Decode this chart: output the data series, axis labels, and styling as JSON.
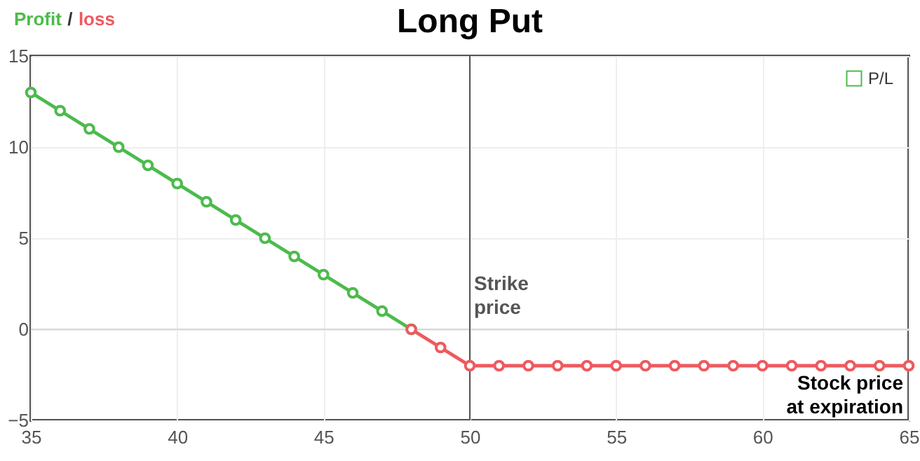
{
  "chart_data": {
    "type": "line",
    "title": "Long Put",
    "ylabel": "Profit / loss",
    "xlabel": "Stock price at expiration",
    "series": [
      {
        "name": "P/L",
        "color": "#4cbb4c",
        "x": [
          35,
          36,
          37,
          38,
          39,
          40,
          41,
          42,
          43,
          44,
          45,
          46,
          47,
          48
        ],
        "values": [
          13,
          12,
          11,
          10,
          9,
          8,
          7,
          6,
          5,
          4,
          3,
          2,
          1,
          0
        ]
      },
      {
        "color": "#ee5a5f",
        "x": [
          48,
          49,
          50,
          51,
          52,
          53,
          54,
          55,
          56,
          57,
          58,
          59,
          60,
          61,
          62,
          63,
          64,
          65
        ],
        "values": [
          0,
          -1,
          -2,
          -2,
          -2,
          -2,
          -2,
          -2,
          -2,
          -2,
          -2,
          -2,
          -2,
          -2,
          -2,
          -2,
          -2,
          -2
        ]
      }
    ],
    "xlim": [
      35,
      65
    ],
    "xticks": [
      35,
      40,
      45,
      50,
      55,
      60,
      65
    ],
    "ylim": [
      -5,
      15
    ],
    "yticks": [
      -5,
      0,
      5,
      10,
      15
    ],
    "ref_lines": [
      {
        "axis": "x",
        "value": 50,
        "label": "Strike price",
        "color": "#555555"
      },
      {
        "axis": "y",
        "value": 0,
        "color": "#d8d8d8"
      }
    ],
    "grid": true,
    "legend": "top right",
    "marker": "circle",
    "line_style": "solid"
  }
}
